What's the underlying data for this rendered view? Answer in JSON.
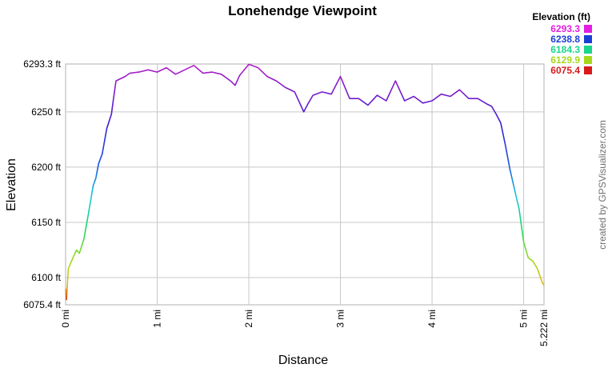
{
  "chart_data": {
    "type": "line",
    "title": "Lonehendge Viewpoint",
    "xlabel": "Distance",
    "ylabel": "Elevation",
    "xlim": [
      0,
      5.222
    ],
    "ylim": [
      6075.4,
      6293.3
    ],
    "x_ticks": [
      {
        "value": 0,
        "label": "0 mi"
      },
      {
        "value": 1,
        "label": "1 mi"
      },
      {
        "value": 2,
        "label": "2 mi"
      },
      {
        "value": 3,
        "label": "3 mi"
      },
      {
        "value": 4,
        "label": "4 mi"
      },
      {
        "value": 5,
        "label": "5 mi"
      },
      {
        "value": 5.222,
        "label": "5.222 mi"
      }
    ],
    "y_ticks": [
      {
        "value": 6075.4,
        "label": "6075.4 ft"
      },
      {
        "value": 6100,
        "label": "6100 ft"
      },
      {
        "value": 6150,
        "label": "6150 ft"
      },
      {
        "value": 6200,
        "label": "6200 ft"
      },
      {
        "value": 6250,
        "label": "6250 ft"
      },
      {
        "value": 6293.3,
        "label": "6293.3 ft"
      }
    ],
    "grid": true,
    "legend": {
      "title": "Elevation (ft)",
      "placement": "top-right",
      "entries": [
        {
          "label": "6293.3",
          "color": "#e21ee1"
        },
        {
          "label": "6238.8",
          "color": "#1a3fd6"
        },
        {
          "label": "6184.3",
          "color": "#1ad68a"
        },
        {
          "label": "6129.9",
          "color": "#a6d81a"
        },
        {
          "label": "6075.4",
          "color": "#d81a1a"
        }
      ]
    },
    "series": [
      {
        "x": [
          0,
          0.01,
          0.03,
          0.05,
          0.08,
          0.12,
          0.15,
          0.2,
          0.25,
          0.3,
          0.33,
          0.36,
          0.4,
          0.45,
          0.5,
          0.52,
          0.55,
          0.6,
          0.65,
          0.7,
          0.8,
          0.9,
          1.0,
          1.1,
          1.2,
          1.3,
          1.4,
          1.5,
          1.6,
          1.7,
          1.8,
          1.85,
          1.9,
          2.0,
          2.1,
          2.2,
          2.3,
          2.4,
          2.5,
          2.6,
          2.65,
          2.7,
          2.8,
          2.9,
          3.0,
          3.1,
          3.2,
          3.3,
          3.4,
          3.5,
          3.6,
          3.7,
          3.8,
          3.9,
          4.0,
          4.1,
          4.2,
          4.3,
          4.4,
          4.5,
          4.6,
          4.65,
          4.7,
          4.75,
          4.8,
          4.85,
          4.9,
          4.95,
          5.0,
          5.05,
          5.1,
          5.15,
          5.2,
          5.222
        ],
        "y": [
          6090,
          6080,
          6108,
          6112,
          6118,
          6125,
          6122,
          6135,
          6158,
          6183,
          6190,
          6203,
          6212,
          6235,
          6248,
          6260,
          6278,
          6280,
          6282,
          6285,
          6286,
          6288,
          6286,
          6290,
          6284,
          6288,
          6292,
          6285,
          6286,
          6284,
          6278,
          6274,
          6283,
          6293,
          6290,
          6282,
          6278,
          6272,
          6268,
          6250,
          6258,
          6265,
          6268,
          6266,
          6282,
          6262,
          6262,
          6256,
          6265,
          6260,
          6278,
          6260,
          6264,
          6258,
          6260,
          6266,
          6264,
          6270,
          6262,
          6262,
          6257,
          6255,
          6248,
          6240,
          6220,
          6198,
          6180,
          6162,
          6132,
          6118,
          6115,
          6108,
          6096,
          6093
        ]
      }
    ]
  },
  "credit": "created by GPSVisualizer.com"
}
